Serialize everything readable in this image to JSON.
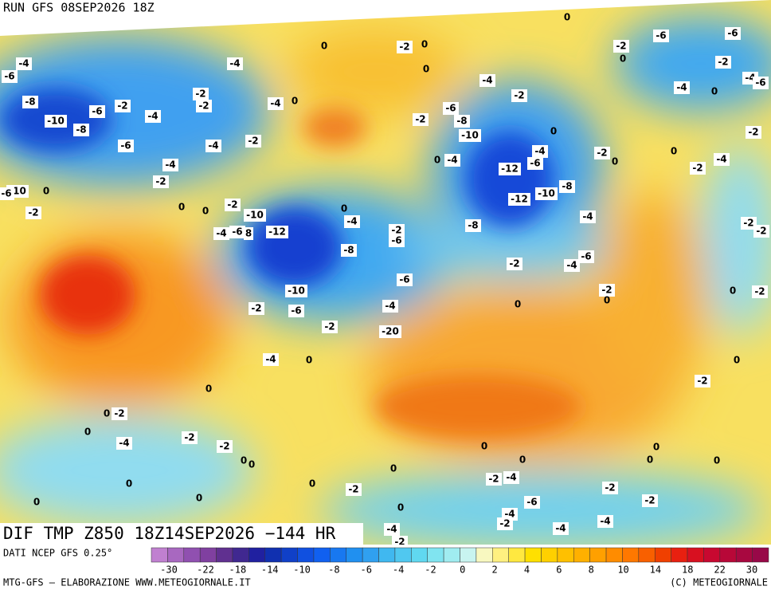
{
  "header": {
    "title": "RUN GFS 08SEP2026 18Z"
  },
  "map": {
    "labels": [
      "-4",
      "-6",
      "-8",
      "-10",
      "-6",
      "-2",
      "-8",
      "-6",
      "-4",
      "-2",
      "-2",
      "-4",
      "-4",
      "-2",
      "-4",
      "0",
      "-4",
      "-2",
      "-10",
      "-6",
      "0",
      "-2",
      "0",
      "0",
      "-2",
      "-10",
      "-4",
      "-6",
      "8",
      "-12",
      "0",
      "-4",
      "-2",
      "-6",
      "-8",
      "-10",
      "-6",
      "-2",
      "-2",
      "-6",
      "-4",
      "-20",
      "-4",
      "0",
      "0",
      "0",
      "-2",
      "0",
      "-4",
      "-2",
      "-2",
      "0",
      "0",
      "0",
      "0",
      "0",
      "-2",
      "0",
      "0",
      "0",
      "-4",
      "-2",
      "0",
      "-2",
      "0",
      "0",
      "-4",
      "-2",
      "-2",
      "-6",
      "-8",
      "-10",
      "0",
      "-4",
      "-12",
      "-6",
      "-4",
      "0",
      "-12",
      "-10",
      "-8",
      "-4",
      "-8",
      "-2",
      "-4",
      "-6",
      "-2",
      "0",
      "0",
      "-2",
      "0",
      "0",
      "-2",
      "-4",
      "-6",
      "-6",
      "-2",
      "0",
      "-2",
      "-4",
      "0",
      "-4",
      "-6",
      "-2",
      "-2",
      "-2",
      "0",
      "-2",
      "0",
      "-2",
      "0",
      "0",
      "0",
      "0",
      "0",
      "-2",
      "-4",
      "-6",
      "-2",
      "-2",
      "-4",
      "-2",
      "-4",
      "-4",
      "0"
    ]
  },
  "footer": {
    "product": "DIF TMP Z850 18Z14SEP2026 −144 HR",
    "source": "DATI NCEP GFS 0.25°",
    "credit": "MTG-GFS – ELABORAZIONE WWW.METEOGIORNALE.IT",
    "copyright": "(C) METEOGIORNALE"
  },
  "colorbar": {
    "colors": [
      "#c080d0",
      "#a868c0",
      "#9050b0",
      "#8040a0",
      "#603090",
      "#402890",
      "#2020a0",
      "#1030b0",
      "#1040c8",
      "#1050e0",
      "#1060f0",
      "#1878f0",
      "#2090f0",
      "#30a0f0",
      "#40b8f0",
      "#50c8f0",
      "#60d8f0",
      "#80e4f0",
      "#a0ecf0",
      "#c8f4f0",
      "#f8f8c0",
      "#fff080",
      "#ffe840",
      "#ffe000",
      "#ffd000",
      "#ffc000",
      "#ffb000",
      "#ffa000",
      "#ff8c00",
      "#ff7800",
      "#f86000",
      "#f04000",
      "#e82010",
      "#d81020",
      "#c80830",
      "#b80838",
      "#a80840",
      "#980848"
    ],
    "labels": [
      "-30",
      "-22",
      "-18",
      "-14",
      "-10",
      "-8",
      "-6",
      "-4",
      "-2",
      "0",
      "2",
      "4",
      "6",
      "8",
      "10",
      "14",
      "18",
      "22",
      "30"
    ]
  }
}
